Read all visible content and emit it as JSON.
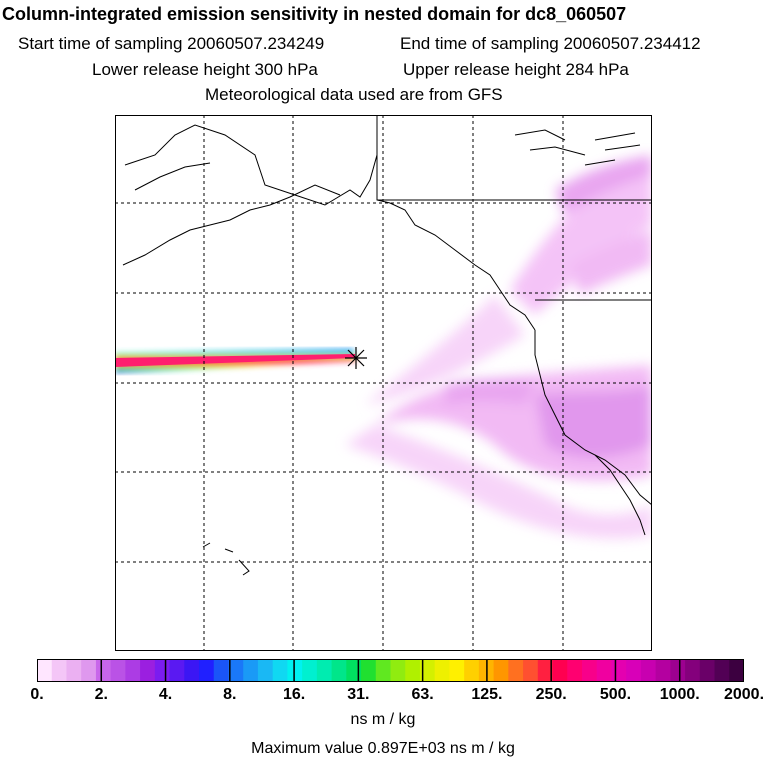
{
  "header": {
    "title": "Column-integrated emission sensitivity in nested domain for dc8_060507",
    "start_time": "Start time of sampling 20060507.234249",
    "end_time": "End time of sampling 20060507.234412",
    "lower_release": "Lower release height  300 hPa",
    "upper_release": "Upper release height  284 hPa",
    "met_data": "Meteorological data used are from GFS"
  },
  "map": {
    "release_marker": "release-point-star",
    "colors": {
      "plume_low": "#ff88ff",
      "plume_high": "#cc44ee",
      "coast": "#000000",
      "grid": "#000000"
    }
  },
  "colorbar": {
    "tick_labels": [
      "0.",
      "2.",
      "4.",
      "8.",
      "16.",
      "31.",
      "63.",
      "125.",
      "250.",
      "500.",
      "1000.",
      "2000."
    ],
    "colors": [
      "#ffe6ff",
      "#f4c6f7",
      "#ebb0f2",
      "#df98ee",
      "#c866ea",
      "#ba52e6",
      "#ac3ce4",
      "#9b1fe0",
      "#7b1cf0",
      "#5a19f2",
      "#3b16f4",
      "#2020ff",
      "#1a55f8",
      "#1a78f8",
      "#1a9af6",
      "#1ab8f4",
      "#10d8f2",
      "#00f2f0",
      "#00f0d0",
      "#00ecb0",
      "#00e68a",
      "#00e060",
      "#20e030",
      "#60e820",
      "#90ec10",
      "#b0f000",
      "#d4f000",
      "#eef000",
      "#fff000",
      "#ffd000",
      "#ffb400",
      "#ff9600",
      "#ff7020",
      "#ff5030",
      "#ff2040",
      "#ff0050",
      "#ff0070",
      "#f8008a",
      "#f000a0",
      "#e400b0",
      "#d800b8",
      "#c800b0",
      "#b400a0",
      "#9c0090",
      "#84007c",
      "#6a0068",
      "#520055",
      "#3c0040"
    ],
    "units": "ns m / kg",
    "max_value": "Maximum value  0.897E+03 ns m / kg"
  }
}
